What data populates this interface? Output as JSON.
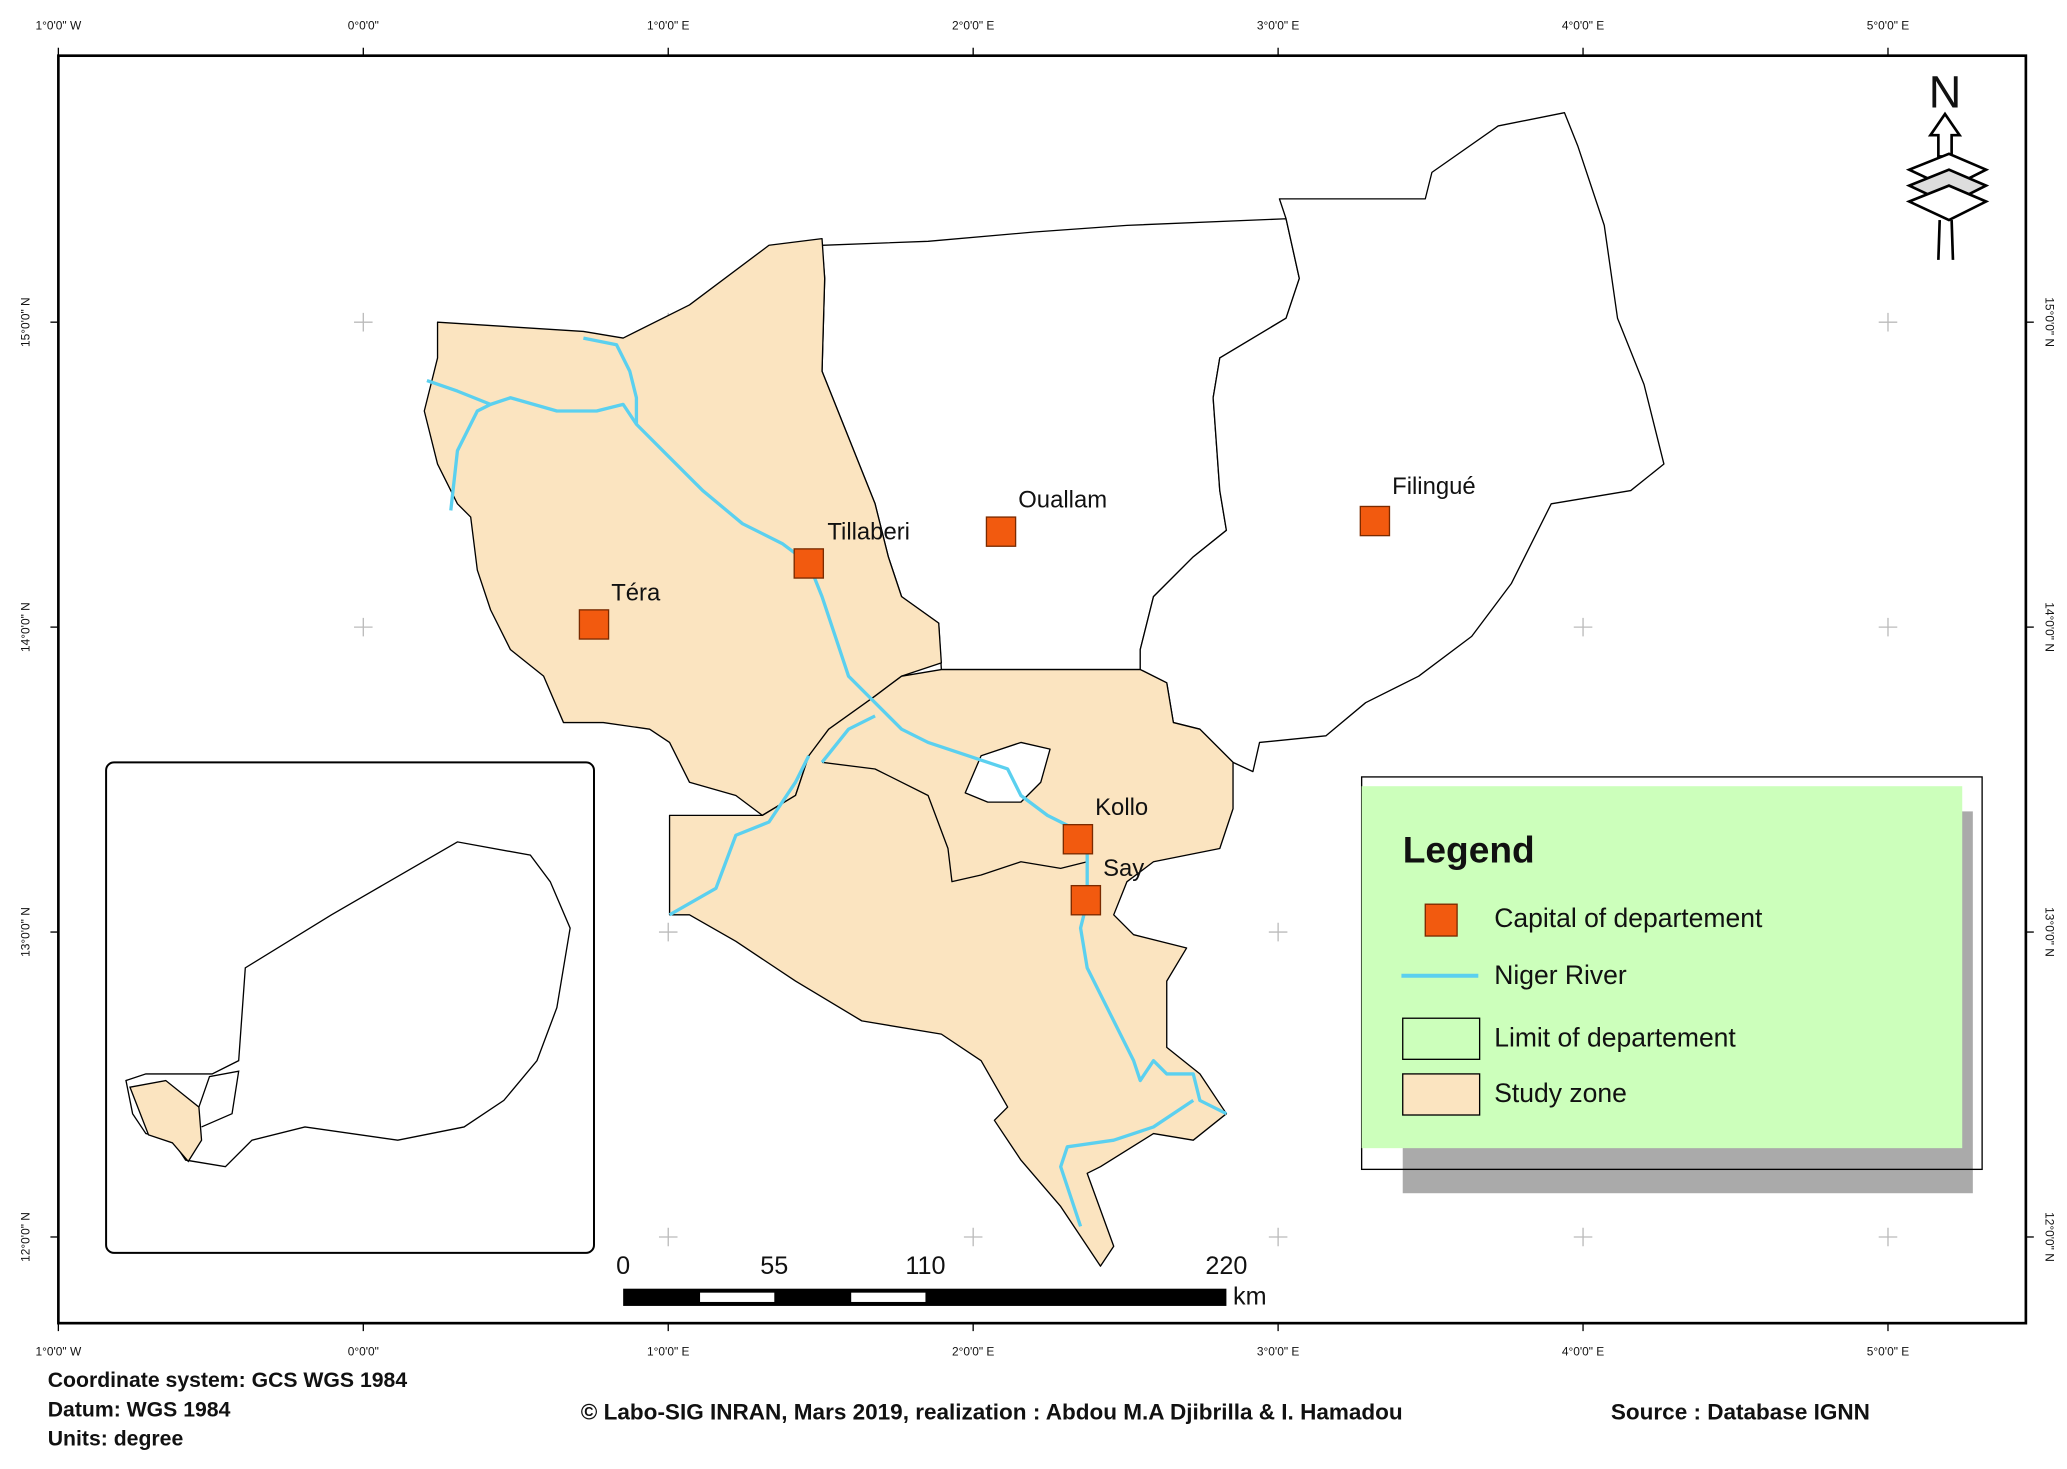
{
  "graticule": {
    "lon_labels": [
      "1°0'0\" W",
      "0°0'0\"",
      "1°0'0\" E",
      "2°0'0\" E",
      "3°0'0\" E",
      "4°0'0\" E",
      "5°0'0\" E"
    ],
    "lat_labels": [
      "15°0'0\" N",
      "14°0'0\" N",
      "13°0'0\" N",
      "12°0'0\" N"
    ]
  },
  "north": "N",
  "towns": [
    "Tillaberi",
    "Ouallam",
    "Filingué",
    "Téra",
    "Kollo",
    "Say"
  ],
  "legend": {
    "title": "Legend",
    "items": [
      "Capital of departement",
      "Niger River",
      "Limit of departement",
      "Study zone"
    ]
  },
  "scale_bar": {
    "labels": [
      "0",
      "55",
      "110",
      "220"
    ],
    "unit": "km"
  },
  "footer": {
    "coordinate_system": "Coordinate system: GCS WGS 1984",
    "datum": "Datum: WGS 1984",
    "units": "Units: degree",
    "credit": "© Labo-SIG INRAN, Mars 2019, realization : Abdou M.A Djibrilla & I. Hamadou",
    "source": "Source : Database IGNN"
  }
}
